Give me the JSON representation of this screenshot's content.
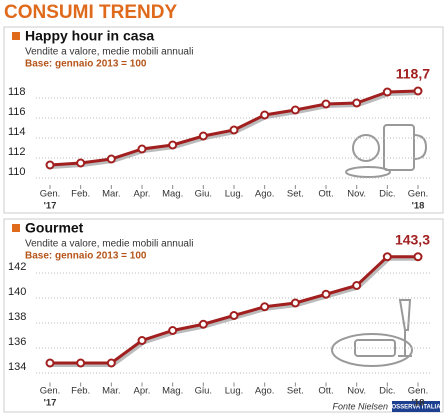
{
  "title": "CONSUMI TRENDY",
  "source": "Fonte Nielsen",
  "logo": "OSSERVA ITALIA",
  "chart_data": [
    {
      "type": "line",
      "title": "Happy hour in casa",
      "subtitle": "Vendite a valore, medie mobili annuali",
      "base_note": "Base: gennaio 2013 = 100",
      "categories": [
        "Gen.",
        "Feb.",
        "Mar.",
        "Apr.",
        "Mag.",
        "Giu.",
        "Lug.",
        "Ago.",
        "Set.",
        "Ott.",
        "Nov.",
        "Dic.",
        "Gen."
      ],
      "start_year": "'17",
      "end_year": "'18",
      "values": [
        111.3,
        111.5,
        111.9,
        112.9,
        113.3,
        114.2,
        114.8,
        116.3,
        116.8,
        117.4,
        117.5,
        118.6,
        118.7
      ],
      "value_labels": [
        null,
        null,
        null,
        null,
        null,
        null,
        null,
        null,
        null,
        null,
        null,
        null,
        "118,7"
      ],
      "color": "#a11f1f",
      "ylim": [
        109,
        120
      ],
      "yticks": [
        110,
        112,
        114,
        116,
        118
      ],
      "grid": true
    },
    {
      "type": "line",
      "title": "Gourmet",
      "subtitle": "Vendite a valore, medie mobili annuali",
      "base_note": "Base: gennaio 2013 = 100",
      "categories": [
        "Gen.",
        "Feb.",
        "Mar.",
        "Apr.",
        "Mag.",
        "Giu.",
        "Lug.",
        "Ago.",
        "Set.",
        "Ott.",
        "Nov.",
        "Dic.",
        "Gen."
      ],
      "start_year": "'17",
      "end_year": "'18",
      "values": [
        134.8,
        134.8,
        134.8,
        136.6,
        137.4,
        137.9,
        138.6,
        139.3,
        139.6,
        140.3,
        141.0,
        143.3,
        143.3
      ],
      "value_labels": [
        null,
        null,
        null,
        null,
        null,
        null,
        null,
        null,
        null,
        null,
        null,
        null,
        "143,3"
      ],
      "color": "#a11f1f",
      "ylim": [
        133,
        144
      ],
      "yticks": [
        134,
        136,
        138,
        140,
        142
      ],
      "grid": true
    }
  ]
}
